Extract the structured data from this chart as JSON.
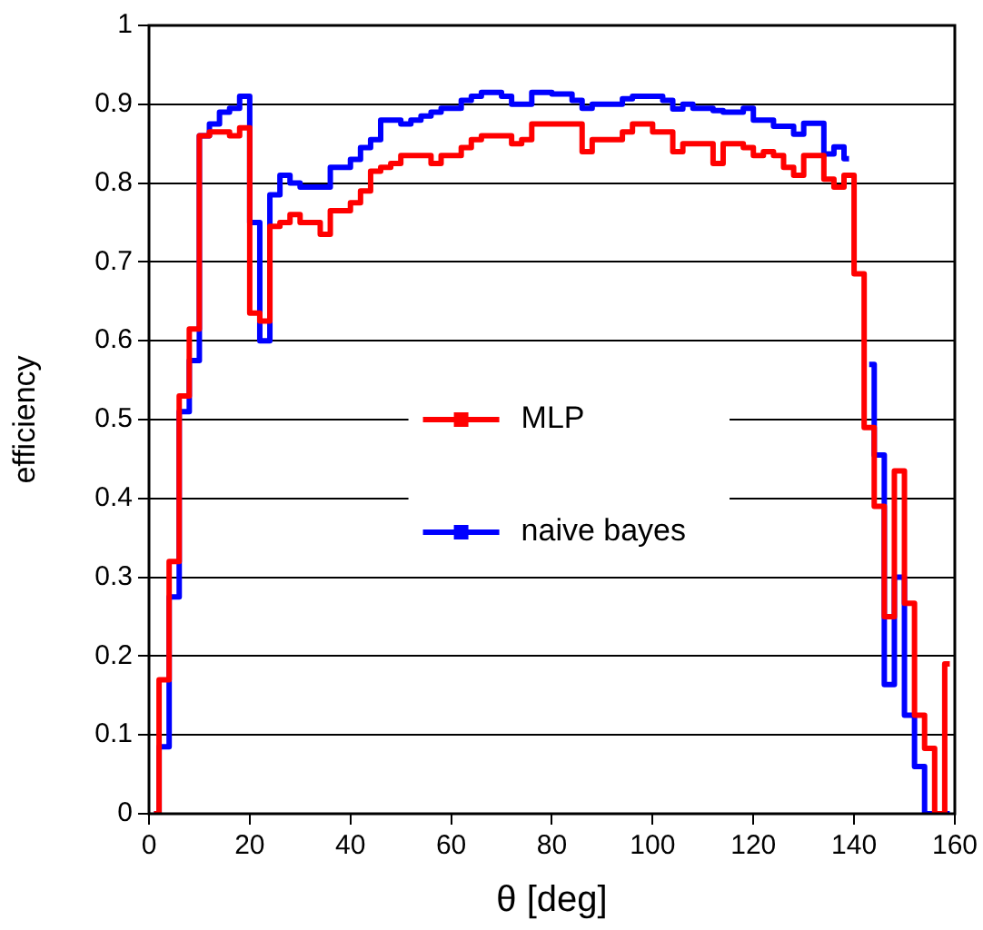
{
  "chart_data": {
    "type": "step",
    "xlabel": "θ [deg]",
    "ylabel": "efficiency",
    "x": [
      1,
      3,
      5,
      7,
      9,
      11,
      13,
      15,
      17,
      19,
      21,
      23,
      25,
      27,
      29,
      31,
      33,
      35,
      37,
      39,
      41,
      43,
      45,
      47,
      49,
      51,
      53,
      55,
      57,
      59,
      61,
      63,
      65,
      67,
      69,
      71,
      73,
      75,
      77,
      79,
      81,
      83,
      85,
      87,
      89,
      91,
      93,
      95,
      97,
      99,
      101,
      103,
      105,
      107,
      109,
      111,
      113,
      115,
      117,
      119,
      121,
      123,
      125,
      127,
      129,
      131,
      133,
      135,
      137,
      139,
      141,
      143,
      145,
      147,
      149,
      151,
      153,
      155,
      157,
      159
    ],
    "series": [
      {
        "name": "MLP",
        "color": "#ff0000",
        "values": [
          0,
          0.17,
          0.32,
          0.53,
          0.615,
          0.86,
          0.865,
          0.865,
          0.86,
          0.87,
          0.635,
          0.625,
          0.745,
          0.75,
          0.76,
          0.75,
          0.75,
          0.735,
          0.765,
          0.765,
          0.775,
          0.79,
          0.815,
          0.82,
          0.825,
          0.835,
          0.835,
          0.835,
          0.825,
          0.835,
          0.835,
          0.845,
          0.855,
          0.86,
          0.86,
          0.86,
          0.85,
          0.855,
          0.875,
          0.875,
          0.875,
          0.875,
          0.875,
          0.84,
          0.855,
          0.855,
          0.855,
          0.865,
          0.875,
          0.875,
          0.865,
          0.865,
          0.84,
          0.85,
          0.85,
          0.85,
          0.825,
          0.85,
          0.85,
          0.845,
          0.835,
          0.84,
          0.835,
          0.82,
          0.81,
          0.835,
          0.835,
          0.805,
          0.795,
          0.81,
          0.685,
          0.49,
          0.39,
          0.25,
          0.435,
          0.267,
          0.125,
          0.083,
          0,
          0.19
        ]
      },
      {
        "name": "naive bayes",
        "color": "#0000ff",
        "values": [
          0,
          0.085,
          0.275,
          0.51,
          0.575,
          0.86,
          0.875,
          0.89,
          0.895,
          0.91,
          0.75,
          0.6,
          0.785,
          0.81,
          0.8,
          0.795,
          0.795,
          0.795,
          0.82,
          0.82,
          0.83,
          0.845,
          0.855,
          0.88,
          0.88,
          0.875,
          0.88,
          0.885,
          0.89,
          0.895,
          0.895,
          0.905,
          0.91,
          0.915,
          0.915,
          0.91,
          0.9,
          0.9,
          0.915,
          0.915,
          0.913,
          0.913,
          0.905,
          0.895,
          0.9,
          0.9,
          0.9,
          0.907,
          0.91,
          0.91,
          0.91,
          0.905,
          0.894,
          0.9,
          0.895,
          0.895,
          0.892,
          0.89,
          0.89,
          0.895,
          0.88,
          0.88,
          0.872,
          0.872,
          0.862,
          0.876,
          0.876,
          0.837,
          0.846,
          0.831,
          null,
          0.57,
          0.455,
          0.164,
          0.3,
          0.125,
          0.06,
          0,
          0,
          0
        ]
      }
    ],
    "xlim": [
      0,
      160
    ],
    "xticks": [
      0,
      20,
      40,
      60,
      80,
      100,
      120,
      140,
      160
    ],
    "ylim": [
      0,
      1
    ],
    "yticks": [
      0,
      0.1,
      0.2,
      0.3,
      0.4,
      0.5,
      0.6,
      0.7,
      0.8,
      0.9,
      1
    ],
    "grid": "y",
    "legend": "center",
    "line_style": "solid"
  }
}
